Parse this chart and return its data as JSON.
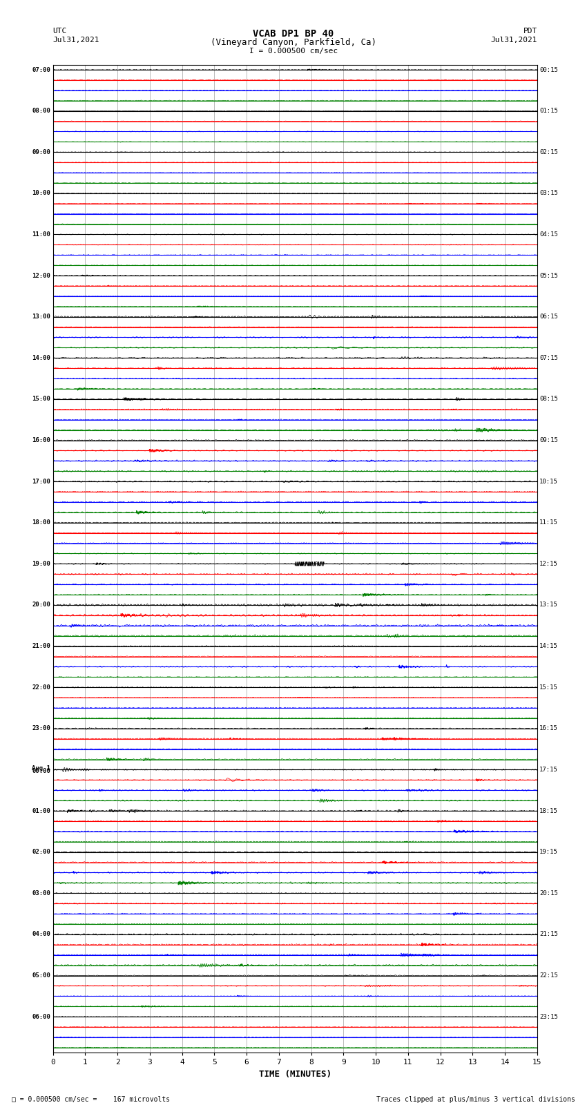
{
  "title_line1": "VCAB DP1 BP 40",
  "title_line2": "(Vineyard Canyon, Parkfield, Ca)",
  "scale_text": "I = 0.000500 cm/sec",
  "utc_label": "UTC",
  "utc_date": "Jul31,2021",
  "pdt_label": "PDT",
  "pdt_date": "Jul31,2021",
  "xlabel": "TIME (MINUTES)",
  "footer_left": "= 0.000500 cm/sec =    167 microvolts",
  "footer_right": "Traces clipped at plus/minus 3 vertical divisions",
  "bg_color": "#ffffff",
  "colors": [
    "black",
    "red",
    "blue",
    "green"
  ],
  "num_rows": 96,
  "xlim": [
    0,
    15
  ],
  "xticks": [
    0,
    1,
    2,
    3,
    4,
    5,
    6,
    7,
    8,
    9,
    10,
    11,
    12,
    13,
    14,
    15
  ],
  "left_times_utc": [
    "07:00",
    "",
    "",
    "",
    "08:00",
    "",
    "",
    "",
    "09:00",
    "",
    "",
    "",
    "10:00",
    "",
    "",
    "",
    "11:00",
    "",
    "",
    "",
    "12:00",
    "",
    "",
    "",
    "13:00",
    "",
    "",
    "",
    "14:00",
    "",
    "",
    "",
    "15:00",
    "",
    "",
    "",
    "16:00",
    "",
    "",
    "",
    "17:00",
    "",
    "",
    "",
    "18:00",
    "",
    "",
    "",
    "19:00",
    "",
    "",
    "",
    "20:00",
    "",
    "",
    "",
    "21:00",
    "",
    "",
    "",
    "22:00",
    "",
    "",
    "",
    "23:00",
    "",
    "",
    "",
    "Aug 1\n00:00",
    "",
    "",
    "",
    "01:00",
    "",
    "",
    "",
    "02:00",
    "",
    "",
    "",
    "03:00",
    "",
    "",
    "",
    "04:00",
    "",
    "",
    "",
    "05:00",
    "",
    "",
    "",
    "06:00",
    "",
    "",
    ""
  ],
  "right_times_pdt": [
    "00:15",
    "",
    "",
    "",
    "01:15",
    "",
    "",
    "",
    "02:15",
    "",
    "",
    "",
    "03:15",
    "",
    "",
    "",
    "04:15",
    "",
    "",
    "",
    "05:15",
    "",
    "",
    "",
    "06:15",
    "",
    "",
    "",
    "07:15",
    "",
    "",
    "",
    "08:15",
    "",
    "",
    "",
    "09:15",
    "",
    "",
    "",
    "10:15",
    "",
    "",
    "",
    "11:15",
    "",
    "",
    "",
    "12:15",
    "",
    "",
    "",
    "13:15",
    "",
    "",
    "",
    "14:15",
    "",
    "",
    "",
    "15:15",
    "",
    "",
    "",
    "16:15",
    "",
    "",
    "",
    "17:15",
    "",
    "",
    "",
    "18:15",
    "",
    "",
    "",
    "19:15",
    "",
    "",
    "",
    "20:15",
    "",
    "",
    "",
    "21:15",
    "",
    "",
    "",
    "22:15",
    "",
    "",
    "",
    "23:15",
    "",
    "",
    ""
  ],
  "baseline_lw": 0.8,
  "trace_lw": 0.5
}
